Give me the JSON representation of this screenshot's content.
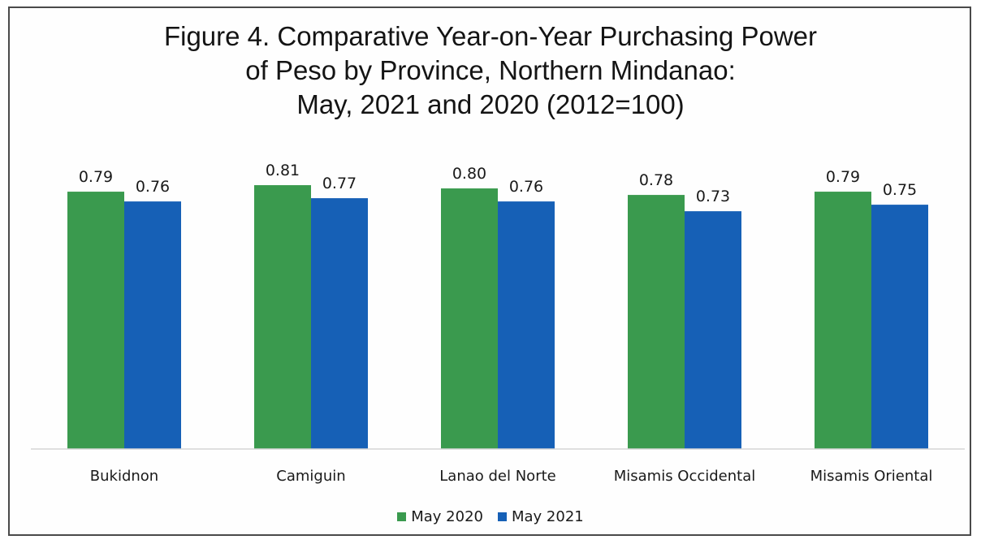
{
  "chart_data": {
    "type": "bar",
    "title": "Figure 4.  Comparative Year-on-Year Purchasing Power\nof Peso by Province, Northern Mindanao:\nMay, 2021 and 2020 (2012=100)",
    "categories": [
      "Bukidnon",
      "Camiguin",
      "Lanao del Norte",
      "Misamis Occidental",
      "Misamis Oriental"
    ],
    "series": [
      {
        "name": "May 2020",
        "color": "#3a9a4e",
        "values": [
          0.79,
          0.81,
          0.8,
          0.78,
          0.79
        ],
        "labels": [
          "0.79",
          "0.81",
          "0.80",
          "0.78",
          "0.79"
        ]
      },
      {
        "name": "May 2021",
        "color": "#1660b6",
        "values": [
          0.76,
          0.77,
          0.76,
          0.73,
          0.75
        ],
        "labels": [
          "0.76",
          "0.77",
          "0.76",
          "0.73",
          "0.75"
        ]
      }
    ],
    "ylim": [
      0,
      0.85
    ],
    "grid": false,
    "legend": "bottom"
  }
}
